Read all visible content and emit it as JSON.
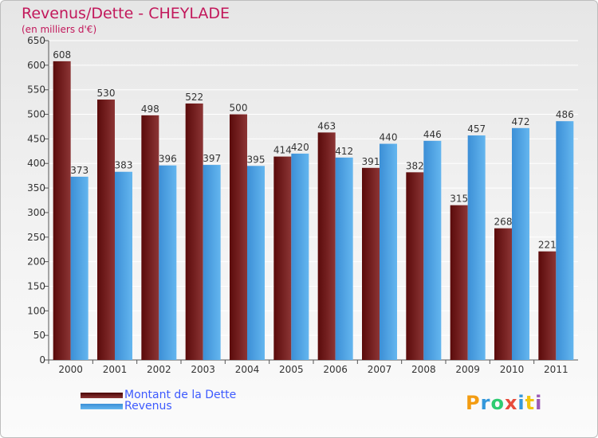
{
  "header": {
    "title": "Revenus/Dette - CHEYLADE",
    "subtitle": "(en milliers d'€)"
  },
  "chart_data": {
    "type": "bar",
    "categories": [
      "2000",
      "2001",
      "2002",
      "2003",
      "2004",
      "2005",
      "2006",
      "2007",
      "2008",
      "2009",
      "2010",
      "2011"
    ],
    "series": [
      {
        "name": "Montant de la Dette",
        "values": [
          608,
          530,
          498,
          522,
          500,
          414,
          463,
          391,
          382,
          315,
          268,
          221
        ],
        "color": "#7a1f1f"
      },
      {
        "name": "Revenus",
        "values": [
          373,
          383,
          396,
          397,
          395,
          420,
          412,
          440,
          446,
          457,
          472,
          486
        ],
        "color": "#4aa3e6"
      }
    ],
    "ylim": [
      0,
      650
    ],
    "yticks": [
      0,
      50,
      100,
      150,
      200,
      250,
      300,
      350,
      400,
      450,
      500,
      550,
      600,
      650
    ],
    "grid": true,
    "legend_position": "bottom-left"
  },
  "logo": {
    "letters": [
      "P",
      "r",
      "o",
      "x",
      "i",
      "t",
      "i"
    ],
    "colors": [
      "#f39c12",
      "#3498db",
      "#2ecc71",
      "#e74c3c",
      "#3498db",
      "#f1c40f",
      "#9b59b6"
    ]
  }
}
